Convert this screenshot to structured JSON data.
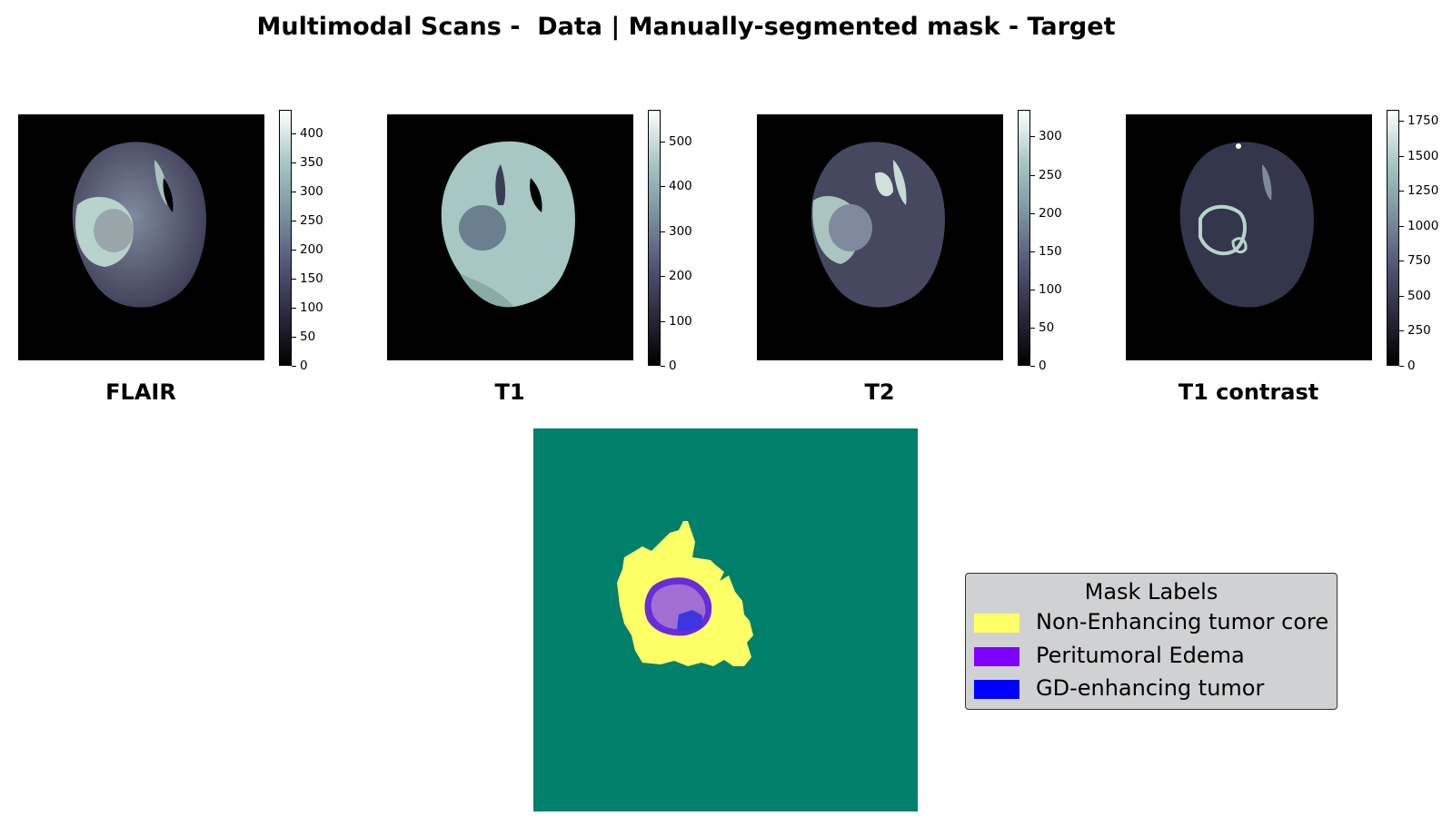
{
  "figure": {
    "title": "Multimodal Scans -  Data | Manually-segmented mask - Target"
  },
  "scans": [
    {
      "label": "FLAIR",
      "ticks": [
        "0",
        "50",
        "100",
        "150",
        "200",
        "250",
        "300",
        "350",
        "400"
      ],
      "max": 440
    },
    {
      "label": "T1",
      "ticks": [
        "0",
        "100",
        "200",
        "300",
        "400",
        "500"
      ],
      "max": 570
    },
    {
      "label": "T2",
      "ticks": [
        "0",
        "50",
        "100",
        "150",
        "200",
        "250",
        "300"
      ],
      "max": 335
    },
    {
      "label": "T1 contrast",
      "ticks": [
        "0",
        "250",
        "500",
        "750",
        "1000",
        "1250",
        "1500",
        "1750"
      ],
      "max": 1830
    }
  ],
  "colormap": {
    "name": "bone",
    "stops": [
      "#000000",
      "#2b2a3e",
      "#55577a",
      "#7c95a0",
      "#a8c7c7",
      "#ffffff"
    ]
  },
  "mask": {
    "background_color": "#00806a"
  },
  "legend": {
    "title": "Mask Labels",
    "items": [
      {
        "label": "Non-Enhancing tumor core",
        "color": "#ffff66"
      },
      {
        "label": "Peritumoral Edema",
        "color": "#8000ff"
      },
      {
        "label": "GD-enhancing tumor",
        "color": "#0000ff"
      }
    ]
  }
}
